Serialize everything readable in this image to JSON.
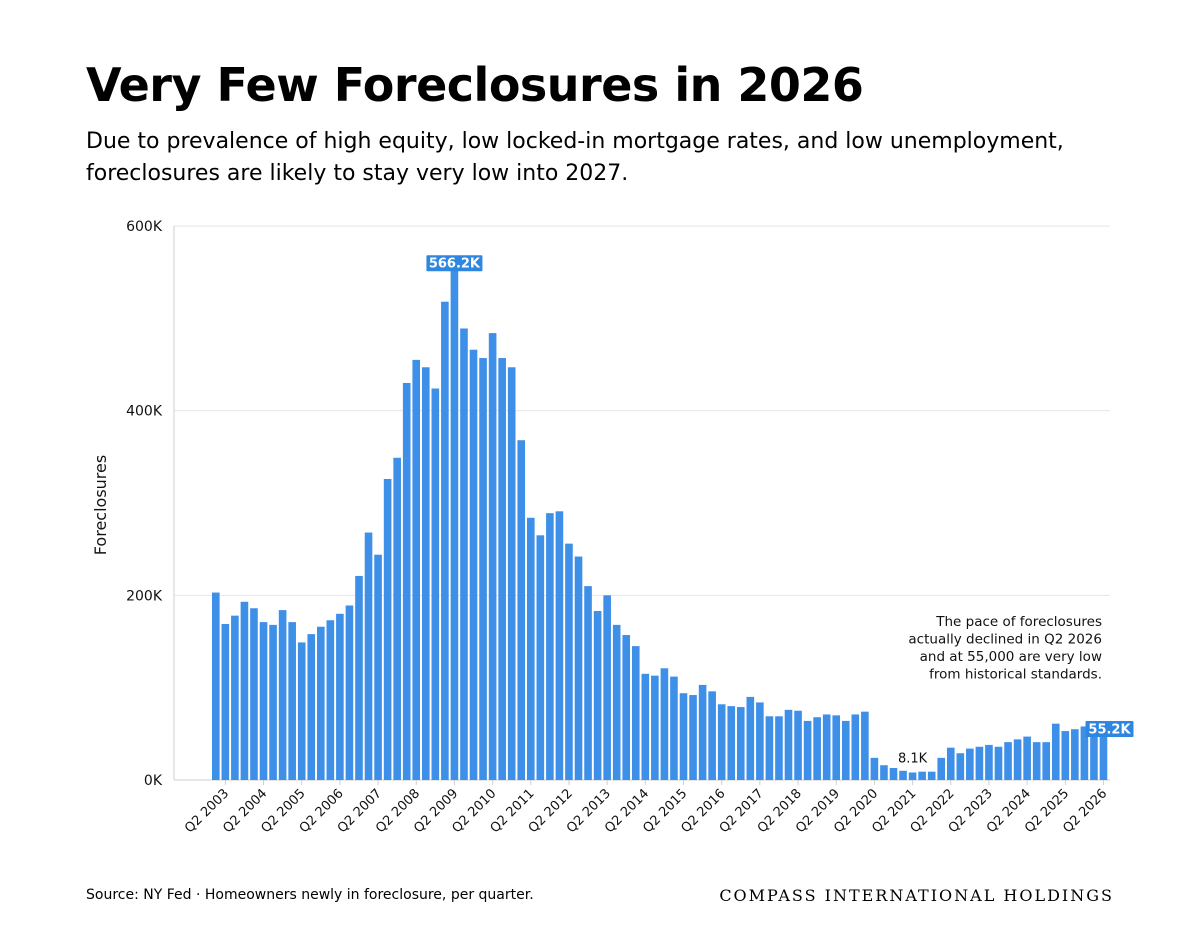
{
  "header": {
    "title": "Very Few Foreclosures in 2026",
    "subtitle_line1": "Due to prevalence of high equity, low locked-in mortgage rates, and low unemployment,",
    "subtitle_line2": "foreclosures are likely to stay very low into 2027."
  },
  "footer": {
    "source": "Source: NY Fed · Homeowners newly in foreclosure, per quarter.",
    "brand": "COMPASS INTERNATIONAL HOLDINGS"
  },
  "chart_data": {
    "type": "bar",
    "ylabel": "Foreclosures",
    "ylim": [
      0,
      600000
    ],
    "yticks": [
      {
        "value": 0,
        "label": "0K"
      },
      {
        "value": 200000,
        "label": "200K"
      },
      {
        "value": 400000,
        "label": "400K"
      },
      {
        "value": 600000,
        "label": "600K"
      }
    ],
    "grid": true,
    "bar_color": "#3d8fe8",
    "categories": [
      "Q1 2003",
      "Q2 2003",
      "Q3 2003",
      "Q4 2003",
      "Q1 2004",
      "Q2 2004",
      "Q3 2004",
      "Q4 2004",
      "Q1 2005",
      "Q2 2005",
      "Q3 2005",
      "Q4 2005",
      "Q1 2006",
      "Q2 2006",
      "Q3 2006",
      "Q4 2006",
      "Q1 2007",
      "Q2 2007",
      "Q3 2007",
      "Q4 2007",
      "Q1 2008",
      "Q2 2008",
      "Q3 2008",
      "Q4 2008",
      "Q1 2009",
      "Q2 2009",
      "Q3 2009",
      "Q4 2009",
      "Q1 2010",
      "Q2 2010",
      "Q3 2010",
      "Q4 2010",
      "Q1 2011",
      "Q2 2011",
      "Q3 2011",
      "Q4 2011",
      "Q1 2012",
      "Q2 2012",
      "Q3 2012",
      "Q4 2012",
      "Q1 2013",
      "Q2 2013",
      "Q3 2013",
      "Q4 2013",
      "Q1 2014",
      "Q2 2014",
      "Q3 2014",
      "Q4 2014",
      "Q1 2015",
      "Q2 2015",
      "Q3 2015",
      "Q4 2015",
      "Q1 2016",
      "Q2 2016",
      "Q3 2016",
      "Q4 2016",
      "Q1 2017",
      "Q2 2017",
      "Q3 2017",
      "Q4 2017",
      "Q1 2018",
      "Q2 2018",
      "Q3 2018",
      "Q4 2018",
      "Q1 2019",
      "Q2 2019",
      "Q3 2019",
      "Q4 2019",
      "Q1 2020",
      "Q2 2020",
      "Q3 2020",
      "Q4 2020",
      "Q1 2021",
      "Q2 2021",
      "Q3 2021",
      "Q4 2021",
      "Q1 2022",
      "Q2 2022",
      "Q3 2022",
      "Q4 2022",
      "Q1 2023",
      "Q2 2023",
      "Q3 2023",
      "Q4 2023",
      "Q1 2024",
      "Q2 2024",
      "Q3 2024",
      "Q4 2024",
      "Q1 2025",
      "Q2 2025",
      "Q3 2025",
      "Q4 2025",
      "Q1 2026",
      "Q2 2026"
    ],
    "values": [
      203000,
      169000,
      178000,
      193000,
      186000,
      171000,
      168000,
      184000,
      171000,
      149000,
      158000,
      166000,
      173000,
      180000,
      189000,
      221000,
      268000,
      244000,
      326000,
      349000,
      430000,
      455000,
      447000,
      424000,
      518000,
      566200,
      489000,
      466000,
      457000,
      484000,
      457000,
      447000,
      368000,
      284000,
      265000,
      289000,
      291000,
      256000,
      242000,
      210000,
      183000,
      200000,
      168000,
      157000,
      145000,
      115000,
      113000,
      121000,
      112000,
      94000,
      92000,
      103000,
      96000,
      82000,
      80000,
      79000,
      90000,
      84000,
      69000,
      69000,
      76000,
      75000,
      64000,
      68000,
      71000,
      70000,
      64000,
      71000,
      74000,
      24000,
      16000,
      13000,
      10000,
      8100,
      9000,
      9000,
      24000,
      35000,
      29000,
      34000,
      36000,
      38000,
      36000,
      41000,
      44000,
      47000,
      41000,
      41000,
      61000,
      53000,
      55000,
      58000,
      60000,
      55200
    ],
    "x_tick_labels": [
      "Q2 2003",
      "Q2 2004",
      "Q2 2005",
      "Q2 2006",
      "Q2 2007",
      "Q2 2008",
      "Q2 2009",
      "Q2 2010",
      "Q2 2011",
      "Q2 2012",
      "Q2 2013",
      "Q2 2014",
      "Q2 2015",
      "Q2 2016",
      "Q2 2017",
      "Q2 2018",
      "Q2 2019",
      "Q2 2020",
      "Q2 2021",
      "Q2 2022",
      "Q2 2023",
      "Q2 2024",
      "Q2 2025",
      "Q2 2026"
    ],
    "data_labels": [
      {
        "category": "Q2 2009",
        "value": 566200,
        "label": "566.2K",
        "style": "highlight"
      },
      {
        "category": "Q2 2021",
        "value": 8100,
        "label": "8.1K",
        "style": "plain"
      },
      {
        "category": "Q2 2026",
        "value": 55200,
        "label": "55.2K",
        "style": "highlight"
      }
    ],
    "annotation": {
      "anchor": "right",
      "lines": [
        "The pace of foreclosures",
        "actually declined in Q2 2026",
        "and at 55,000 are very low",
        "from historical standards."
      ]
    }
  }
}
